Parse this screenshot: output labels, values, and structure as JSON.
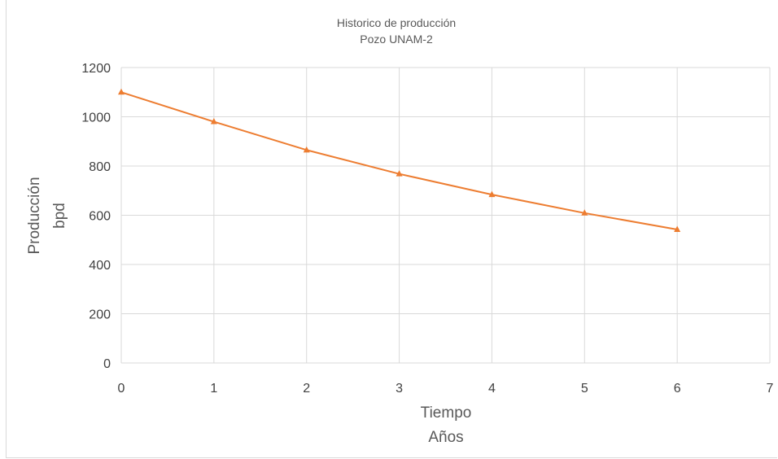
{
  "chart_data": {
    "type": "line",
    "title": "Historico de producción",
    "subtitle": "Pozo UNAM-2",
    "xlabel_line1": "Tiempo",
    "xlabel_line2": "Años",
    "ylabel_line1": "Producción",
    "ylabel_line2": "bpd",
    "xlim": [
      0,
      7
    ],
    "ylim": [
      0,
      1200
    ],
    "x_ticks": [
      "0",
      "1",
      "2",
      "3",
      "4",
      "5",
      "6",
      "7"
    ],
    "y_ticks": [
      "0",
      "200",
      "400",
      "600",
      "800",
      "1000",
      "1200"
    ],
    "grid": true,
    "series": [
      {
        "color": "#ed7d31",
        "marker": "triangle",
        "x": [
          0,
          1,
          2,
          3,
          4,
          5,
          6
        ],
        "y": [
          1100,
          980,
          865,
          768,
          684,
          609,
          542
        ]
      }
    ]
  }
}
